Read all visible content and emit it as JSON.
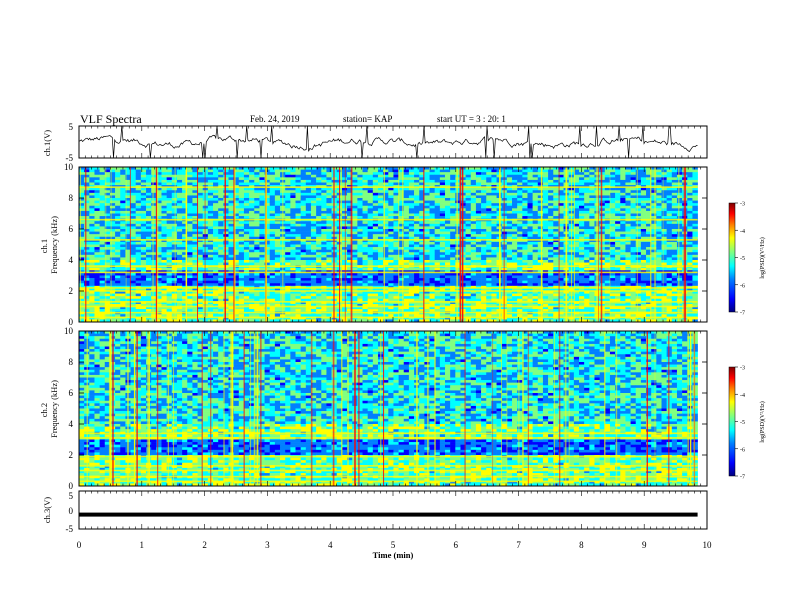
{
  "header": {
    "title": "VLF Spectra",
    "date": "Feb. 24, 2019",
    "station": "station= KAP",
    "start": "start  UT =   3 : 20: 1"
  },
  "colors": {
    "cmap": [
      "#00007f",
      "#0000ff",
      "#0080ff",
      "#00ffff",
      "#80ff80",
      "#ffff00",
      "#ff8000",
      "#ff0000",
      "#7f0000"
    ],
    "trace": "#000000"
  },
  "chart_data": [
    {
      "type": "line",
      "panel": "ch1-waveform",
      "ylabel": "ch.1(V)",
      "ylim": [
        -5,
        5
      ],
      "yticks": [
        "5",
        "-5"
      ],
      "xlim": [
        0,
        9.85
      ],
      "series": [
        {
          "description_free": true,
          "values_note": "noise trace, approx range -5 to 5 V"
        }
      ]
    },
    {
      "type": "heatmap",
      "panel": "ch1-spectrogram",
      "ylabel": "ch.1\nFrequency (kHz)",
      "ylim": [
        0,
        10
      ],
      "yticks": [
        "0",
        "2",
        "4",
        "6",
        "8",
        "10"
      ],
      "xlim": [
        0,
        9.85
      ],
      "colorbar": {
        "label": "log(PSD)(V²/Hz)",
        "range": [
          -7,
          -3
        ],
        "ticks": [
          "-3",
          "-4",
          "-5",
          "-6",
          "-7"
        ]
      },
      "bands_khz": [
        0.3,
        0.6,
        1.0,
        1.3,
        2.0,
        2.2,
        3.2,
        3.6,
        5.3,
        6.6,
        8.7
      ]
    },
    {
      "type": "heatmap",
      "panel": "ch2-spectrogram",
      "ylabel": "ch.2\nFrequency (kHz)",
      "ylim": [
        0,
        10
      ],
      "yticks": [
        "0",
        "2",
        "4",
        "6",
        "8",
        "10"
      ],
      "xlim": [
        0,
        9.85
      ],
      "colorbar": {
        "label": "log(PSD)(V²/Hz)",
        "range": [
          -7,
          -3
        ],
        "ticks": [
          "-3",
          "-4",
          "-5",
          "-6",
          "-7"
        ]
      },
      "bands_khz": [
        0.3,
        0.6,
        1.0,
        1.3,
        1.9,
        3.1,
        3.4
      ]
    },
    {
      "type": "line",
      "panel": "ch3-waveform",
      "ylabel": "ch.3(V)",
      "ylim": [
        -5,
        5
      ],
      "yticks": [
        "5",
        "0",
        "-5"
      ],
      "xlim": [
        0,
        9.85
      ],
      "series": [
        {
          "values": [
            -1.2,
            -1.2
          ]
        }
      ]
    }
  ],
  "xaxis": {
    "label": "Time (min)",
    "ticks": [
      "0",
      "1",
      "2",
      "3",
      "4",
      "5",
      "6",
      "7",
      "8",
      "9",
      "10"
    ],
    "range": [
      0,
      10
    ]
  }
}
